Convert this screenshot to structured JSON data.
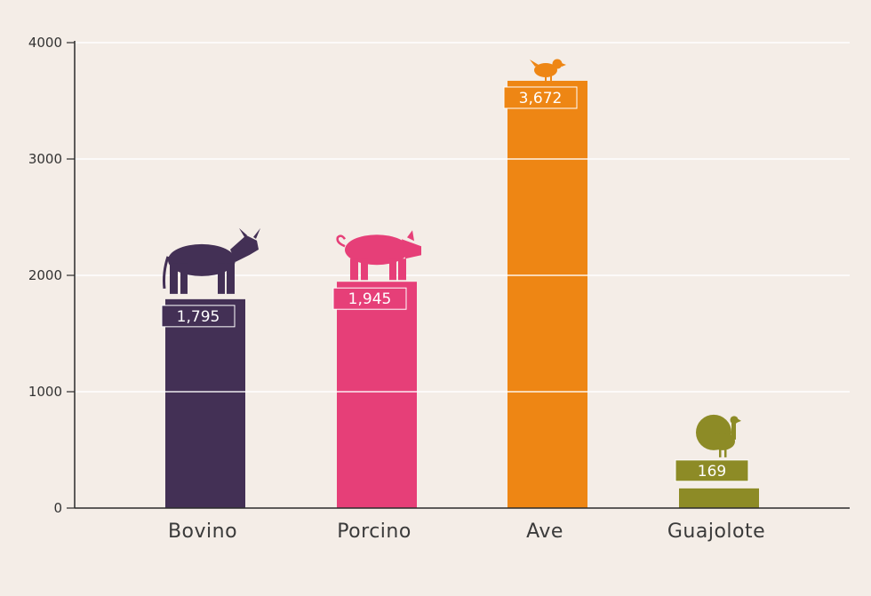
{
  "chart_data": {
    "type": "bar",
    "categories": [
      "Bovino",
      "Porcino",
      "Ave",
      "Guajolote"
    ],
    "values": [
      1795,
      1945,
      3672,
      169
    ],
    "value_labels": [
      "1,795",
      "1,945",
      "3,672",
      "169"
    ],
    "icons": [
      "cow-icon",
      "pig-icon",
      "chicken-icon",
      "turkey-icon"
    ],
    "colors": [
      "#433055",
      "#e63f78",
      "#ee8614",
      "#8d8b26"
    ],
    "ylim": [
      0,
      4000
    ],
    "yticks": [
      0,
      1000,
      2000,
      3000,
      4000
    ],
    "ytick_labels": [
      "0",
      "1000",
      "2000",
      "3000",
      "4000"
    ],
    "grid": true,
    "title": "",
    "xlabel": "",
    "ylabel": ""
  }
}
